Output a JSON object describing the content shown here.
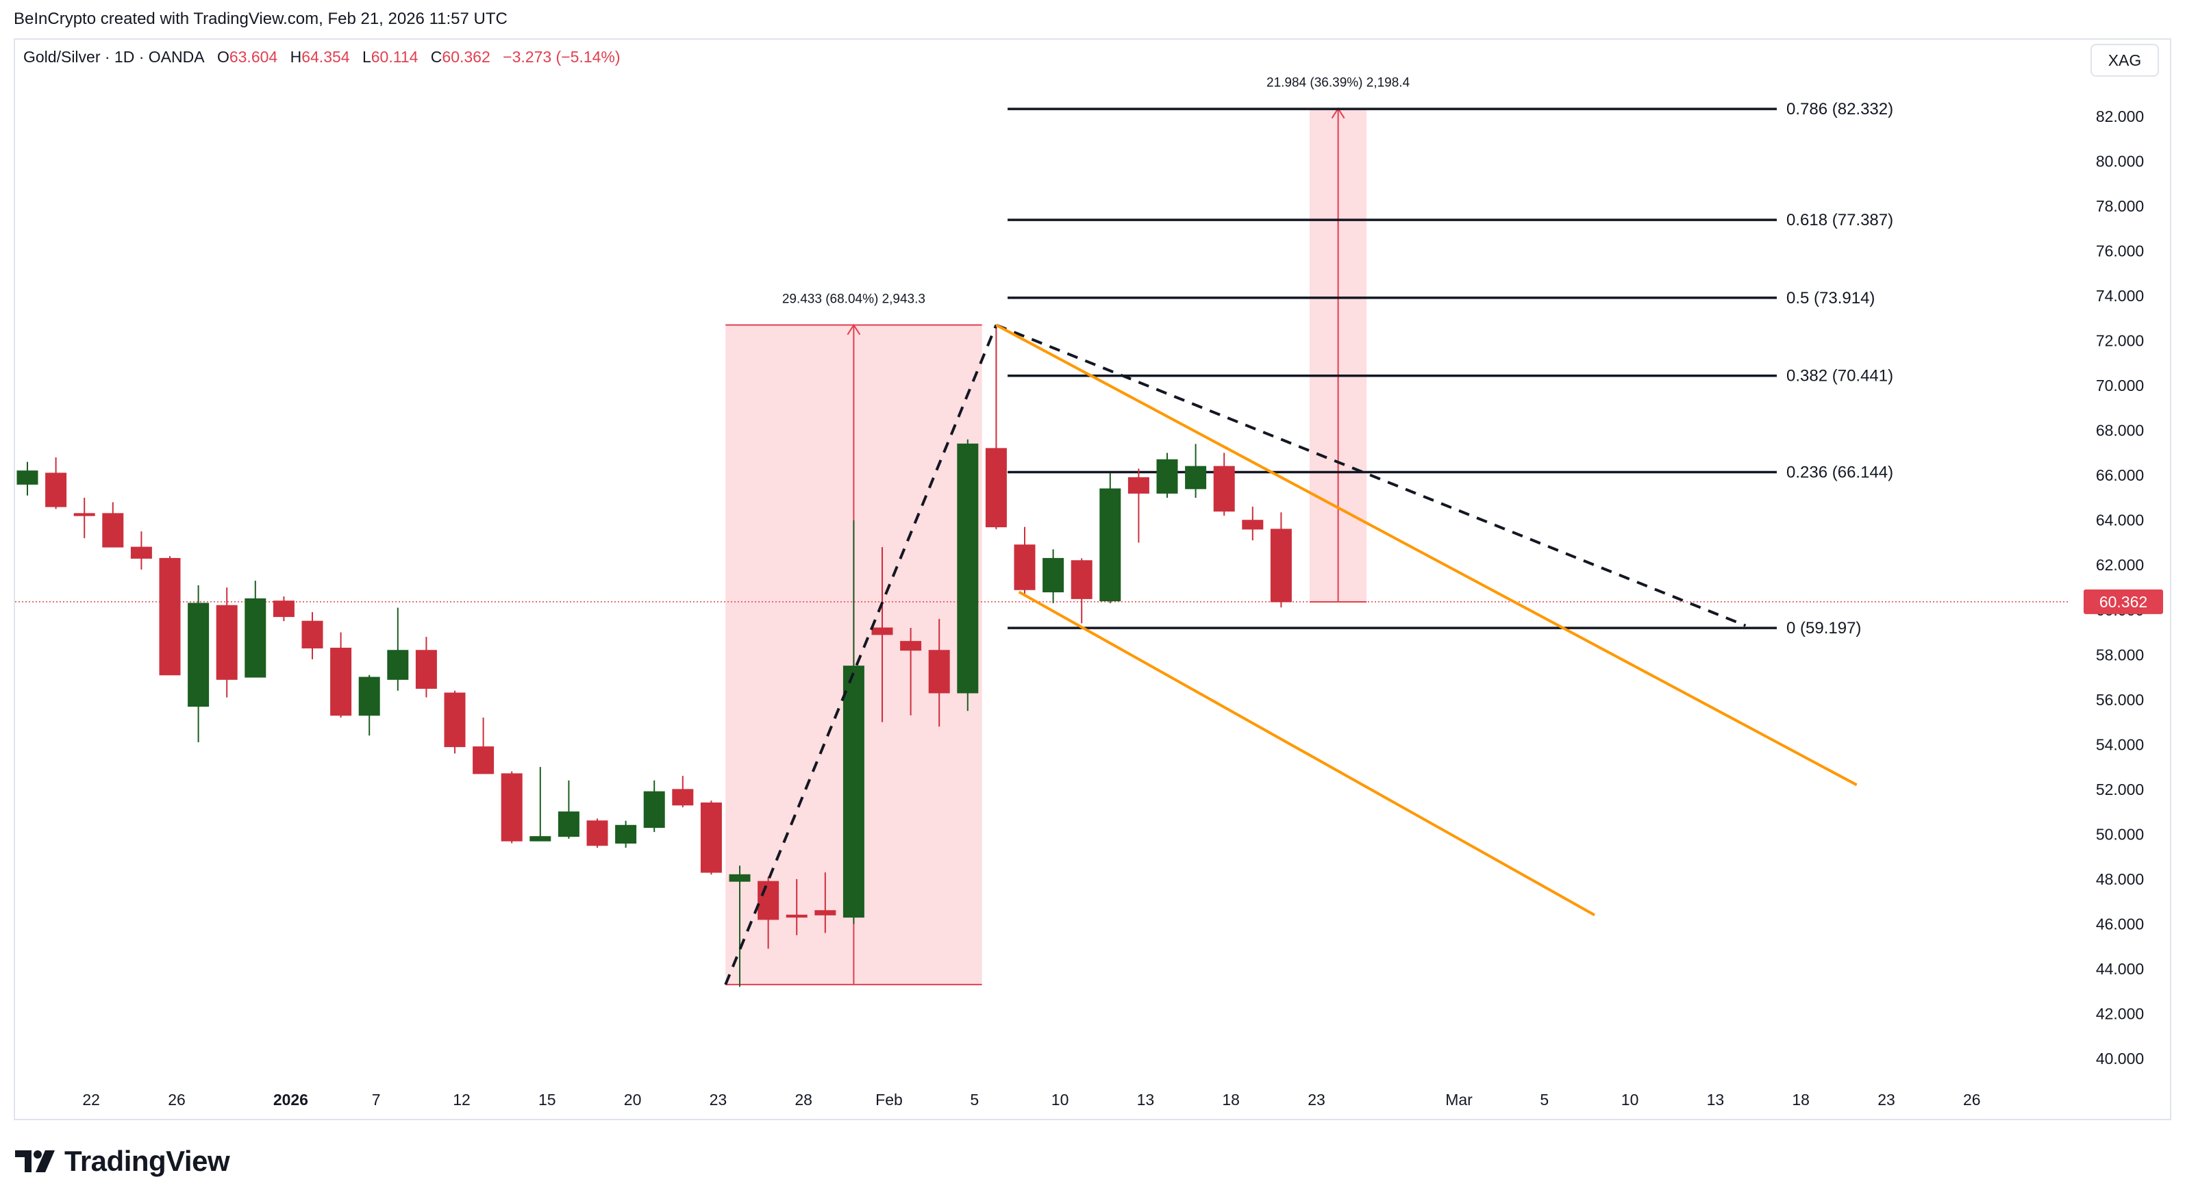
{
  "header": {
    "credit": "BeInCrypto created with TradingView.com, Feb 21, 2026 11:57 UTC"
  },
  "legend": {
    "symbol": "Gold/Silver · 1D · OANDA",
    "open_label": "O",
    "open": "63.604",
    "high_label": "H",
    "high": "64.354",
    "low_label": "L",
    "low": "60.114",
    "close_label": "C",
    "close": "60.362",
    "change": "−3.273 (−5.14%)"
  },
  "currency": "XAG",
  "brand": {
    "name": "TradingView",
    "icon": "tradingview-logo-icon"
  },
  "colors": {
    "up": "#1b5e20",
    "down": "#cc2f3c",
    "accent": "#ff9800",
    "range_fill": "#fdd8dc",
    "price_line": "#e0404f"
  },
  "chart_data": {
    "type": "candlestick",
    "yaxis": {
      "min": 39,
      "max": 84.5,
      "ticks": [
        82,
        80,
        78,
        76,
        74,
        72,
        70,
        68,
        66,
        64,
        62,
        60,
        58,
        56,
        54,
        52,
        50,
        48,
        46,
        44,
        42,
        40
      ],
      "tick_labels": [
        "82.000",
        "80.000",
        "78.000",
        "76.000",
        "74.000",
        "72.000",
        "70.000",
        "68.000",
        "66.000",
        "64.000",
        "62.000",
        "60.000",
        "58.000",
        "56.000",
        "54.000",
        "52.000",
        "50.000",
        "48.000",
        "46.000",
        "44.000",
        "42.000",
        "40.000"
      ]
    },
    "xaxis": {
      "ticks": [
        {
          "i": 2,
          "label": "22",
          "bold": false
        },
        {
          "i": 5,
          "label": "26",
          "bold": false
        },
        {
          "i": 9,
          "label": "2026",
          "bold": true
        },
        {
          "i": 12,
          "label": "7",
          "bold": false
        },
        {
          "i": 15,
          "label": "12",
          "bold": false
        },
        {
          "i": 18,
          "label": "15",
          "bold": false
        },
        {
          "i": 21,
          "label": "20",
          "bold": false
        },
        {
          "i": 24,
          "label": "23",
          "bold": false
        },
        {
          "i": 27,
          "label": "28",
          "bold": false
        },
        {
          "i": 30,
          "label": "Feb",
          "bold": false
        },
        {
          "i": 33,
          "label": "5",
          "bold": false
        },
        {
          "i": 36,
          "label": "10",
          "bold": false
        },
        {
          "i": 39,
          "label": "13",
          "bold": false
        },
        {
          "i": 42,
          "label": "18",
          "bold": false
        },
        {
          "i": 45,
          "label": "23",
          "bold": false
        },
        {
          "i": 50,
          "label": "Mar",
          "bold": false
        },
        {
          "i": 53,
          "label": "5",
          "bold": false
        },
        {
          "i": 56,
          "label": "10",
          "bold": false
        },
        {
          "i": 59,
          "label": "13",
          "bold": false
        },
        {
          "i": 62,
          "label": "18",
          "bold": false
        },
        {
          "i": 65,
          "label": "23",
          "bold": false
        },
        {
          "i": 68,
          "label": "26",
          "bold": false
        }
      ]
    },
    "candles": [
      {
        "o": 65.6,
        "h": 66.6,
        "l": 65.1,
        "c": 66.2
      },
      {
        "o": 66.1,
        "h": 66.8,
        "l": 64.5,
        "c": 64.6
      },
      {
        "o": 64.3,
        "h": 65.0,
        "l": 63.2,
        "c": 64.2
      },
      {
        "o": 64.3,
        "h": 64.8,
        "l": 62.8,
        "c": 62.8
      },
      {
        "o": 62.8,
        "h": 63.5,
        "l": 61.8,
        "c": 62.3
      },
      {
        "o": 62.3,
        "h": 62.4,
        "l": 57.1,
        "c": 57.1
      },
      {
        "o": 55.7,
        "h": 61.1,
        "l": 54.1,
        "c": 60.3
      },
      {
        "o": 60.2,
        "h": 61.0,
        "l": 56.1,
        "c": 56.9
      },
      {
        "o": 57.0,
        "h": 61.3,
        "l": 57.0,
        "c": 60.5
      },
      {
        "o": 60.4,
        "h": 60.6,
        "l": 59.5,
        "c": 59.7
      },
      {
        "o": 59.5,
        "h": 59.9,
        "l": 57.8,
        "c": 58.3
      },
      {
        "o": 58.3,
        "h": 59.0,
        "l": 55.2,
        "c": 55.3
      },
      {
        "o": 55.3,
        "h": 57.1,
        "l": 54.4,
        "c": 57.0
      },
      {
        "o": 56.9,
        "h": 60.1,
        "l": 56.4,
        "c": 58.2
      },
      {
        "o": 58.2,
        "h": 58.8,
        "l": 56.1,
        "c": 56.5
      },
      {
        "o": 56.3,
        "h": 56.4,
        "l": 53.6,
        "c": 53.9
      },
      {
        "o": 53.9,
        "h": 55.2,
        "l": 52.7,
        "c": 52.7
      },
      {
        "o": 52.7,
        "h": 52.8,
        "l": 49.6,
        "c": 49.7
      },
      {
        "o": 49.7,
        "h": 53.0,
        "l": 49.7,
        "c": 49.9
      },
      {
        "o": 49.9,
        "h": 52.4,
        "l": 49.8,
        "c": 51.0
      },
      {
        "o": 50.6,
        "h": 50.7,
        "l": 49.4,
        "c": 49.5
      },
      {
        "o": 49.6,
        "h": 50.6,
        "l": 49.4,
        "c": 50.4
      },
      {
        "o": 50.3,
        "h": 52.4,
        "l": 50.1,
        "c": 51.9
      },
      {
        "o": 52.0,
        "h": 52.6,
        "l": 51.2,
        "c": 51.3
      },
      {
        "o": 51.4,
        "h": 51.5,
        "l": 48.2,
        "c": 48.3
      },
      {
        "o": 47.9,
        "h": 48.6,
        "l": 43.2,
        "c": 48.2
      },
      {
        "o": 47.9,
        "h": 48.1,
        "l": 44.9,
        "c": 46.2
      },
      {
        "o": 46.4,
        "h": 48.0,
        "l": 45.5,
        "c": 46.3
      },
      {
        "o": 46.6,
        "h": 48.3,
        "l": 45.6,
        "c": 46.4
      },
      {
        "o": 46.3,
        "h": 64.0,
        "l": 46.0,
        "c": 57.5
      },
      {
        "o": 59.2,
        "h": 62.8,
        "l": 55.0,
        "c": 58.9
      },
      {
        "o": 58.6,
        "h": 59.2,
        "l": 55.3,
        "c": 58.2
      },
      {
        "o": 58.2,
        "h": 59.6,
        "l": 54.8,
        "c": 56.3
      },
      {
        "o": 56.3,
        "h": 67.6,
        "l": 55.5,
        "c": 67.4
      },
      {
        "o": 67.2,
        "h": 72.7,
        "l": 63.6,
        "c": 63.7
      },
      {
        "o": 62.9,
        "h": 63.7,
        "l": 60.6,
        "c": 60.9
      },
      {
        "o": 60.8,
        "h": 62.7,
        "l": 60.3,
        "c": 62.3
      },
      {
        "o": 62.2,
        "h": 62.3,
        "l": 59.4,
        "c": 60.5
      },
      {
        "o": 60.4,
        "h": 66.1,
        "l": 60.3,
        "c": 65.4
      },
      {
        "o": 65.9,
        "h": 66.3,
        "l": 63.0,
        "c": 65.2
      },
      {
        "o": 65.2,
        "h": 67.0,
        "l": 65.0,
        "c": 66.7
      },
      {
        "o": 65.4,
        "h": 67.4,
        "l": 65.0,
        "c": 66.4
      },
      {
        "o": 66.4,
        "h": 67.0,
        "l": 64.2,
        "c": 64.4
      },
      {
        "o": 64.0,
        "h": 64.6,
        "l": 63.1,
        "c": 63.6
      },
      {
        "o": 63.6,
        "h": 64.35,
        "l": 60.11,
        "c": 60.36
      }
    ],
    "fibonacci": [
      {
        "ratio": "0.786",
        "value": 82.332,
        "label": "0.786 (82.332)"
      },
      {
        "ratio": "0.618",
        "value": 77.387,
        "label": "0.618 (77.387)"
      },
      {
        "ratio": "0.5",
        "value": 73.914,
        "label": "0.5 (73.914)"
      },
      {
        "ratio": "0.382",
        "value": 70.441,
        "label": "0.382 (70.441)"
      },
      {
        "ratio": "0.236",
        "value": 66.144,
        "label": "0.236 (66.144)"
      },
      {
        "ratio": "0",
        "value": 59.197,
        "label": "0 (59.197)"
      }
    ],
    "measurements": [
      {
        "from_i": 24.5,
        "to_i": 33.5,
        "low": 43.3,
        "high": 72.7,
        "label": "29.433 (68.04%) 2,943.3"
      },
      {
        "from_i": 45.0,
        "to_i": 47.0,
        "low": 60.36,
        "high": 82.35,
        "label": "21.984 (36.39%) 2,198.4"
      }
    ],
    "trendlines": [
      {
        "style": "dashed",
        "color": "#131722",
        "x1": 24.5,
        "y1": 43.3,
        "x2": 34.0,
        "y2": 72.7
      },
      {
        "style": "dashed",
        "color": "#131722",
        "x1": 34.0,
        "y1": 72.7,
        "x2": 60.3,
        "y2": 59.3
      },
      {
        "style": "solid",
        "color": "#ff9800",
        "x1": 34.0,
        "y1": 72.7,
        "x2": 64.2,
        "y2": 52.2
      },
      {
        "style": "solid",
        "color": "#ff9800",
        "x1": 34.8,
        "y1": 60.8,
        "x2": 55.0,
        "y2": 46.4
      }
    ],
    "current_price": 60.362,
    "current_price_label": "60.362"
  }
}
